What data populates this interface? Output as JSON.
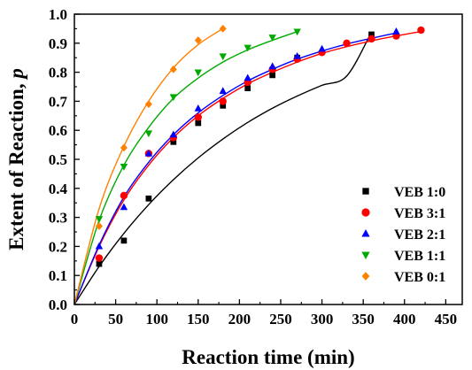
{
  "chart_data": {
    "type": "scatter",
    "xlabel": "Reaction time (min)",
    "ylabel": "Extent of Reaction, p",
    "ylabel_main": "Extent of Reaction, ",
    "ylabel_var": "p",
    "xlim": [
      0,
      470
    ],
    "ylim": [
      0,
      1.0
    ],
    "x_ticks": [
      0,
      50,
      100,
      150,
      200,
      250,
      300,
      350,
      400,
      450
    ],
    "x_tick_labels": [
      "0",
      "50",
      "100",
      "150",
      "200",
      "250",
      "300",
      "350",
      "400",
      "450"
    ],
    "y_ticks": [
      0,
      0.1,
      0.2,
      0.3,
      0.4,
      0.5,
      0.6,
      0.7,
      0.8,
      0.9,
      1.0
    ],
    "y_tick_labels": [
      "0.0",
      "0.1",
      "0.2",
      "0.3",
      "0.4",
      "0.5",
      "0.6",
      "0.7",
      "0.8",
      "0.9",
      "1.0"
    ],
    "grid": false,
    "legend_position": "bottom-right",
    "series": [
      {
        "name": "VEB 1:0",
        "marker": "square",
        "color": "#000000",
        "points": [
          [
            30,
            0.14
          ],
          [
            60,
            0.22
          ],
          [
            90,
            0.365
          ],
          [
            120,
            0.56
          ],
          [
            150,
            0.625
          ],
          [
            180,
            0.685
          ],
          [
            210,
            0.745
          ],
          [
            240,
            0.79
          ],
          [
            270,
            0.85
          ],
          [
            360,
            0.93
          ]
        ],
        "fit": [
          [
            0,
            0.0
          ],
          [
            30,
            0.131
          ],
          [
            60,
            0.245
          ],
          [
            90,
            0.344
          ],
          [
            120,
            0.43
          ],
          [
            150,
            0.505
          ],
          [
            180,
            0.57
          ],
          [
            210,
            0.627
          ],
          [
            240,
            0.676
          ],
          [
            270,
            0.718
          ],
          [
            300,
            0.755
          ],
          [
            330,
            0.787
          ],
          [
            360,
            0.938
          ]
        ]
      },
      {
        "name": "VEB 3:1",
        "marker": "circle",
        "color": "#ff0000",
        "points": [
          [
            30,
            0.16
          ],
          [
            60,
            0.375
          ],
          [
            90,
            0.52
          ],
          [
            120,
            0.575
          ],
          [
            150,
            0.645
          ],
          [
            180,
            0.7
          ],
          [
            210,
            0.765
          ],
          [
            240,
            0.81
          ],
          [
            270,
            0.845
          ],
          [
            300,
            0.868
          ],
          [
            330,
            0.9
          ],
          [
            360,
            0.915
          ],
          [
            390,
            0.925
          ],
          [
            420,
            0.945
          ]
        ],
        "fit": [
          [
            0,
            0.0
          ],
          [
            30,
            0.2
          ],
          [
            60,
            0.36
          ],
          [
            90,
            0.48
          ],
          [
            120,
            0.575
          ],
          [
            150,
            0.65
          ],
          [
            180,
            0.71
          ],
          [
            210,
            0.76
          ],
          [
            240,
            0.8
          ],
          [
            270,
            0.835
          ],
          [
            300,
            0.865
          ],
          [
            330,
            0.888
          ],
          [
            360,
            0.908
          ],
          [
            390,
            0.925
          ],
          [
            420,
            0.94
          ]
        ]
      },
      {
        "name": "VEB 2:1",
        "marker": "triangle-up",
        "color": "#0000ff",
        "points": [
          [
            30,
            0.2
          ],
          [
            60,
            0.335
          ],
          [
            90,
            0.52
          ],
          [
            120,
            0.585
          ],
          [
            150,
            0.675
          ],
          [
            180,
            0.735
          ],
          [
            210,
            0.78
          ],
          [
            240,
            0.82
          ],
          [
            270,
            0.855
          ],
          [
            300,
            0.88
          ],
          [
            390,
            0.94
          ]
        ],
        "fit": [
          [
            0,
            0.0
          ],
          [
            30,
            0.205
          ],
          [
            60,
            0.37
          ],
          [
            90,
            0.49
          ],
          [
            120,
            0.585
          ],
          [
            150,
            0.66
          ],
          [
            180,
            0.72
          ],
          [
            210,
            0.77
          ],
          [
            240,
            0.81
          ],
          [
            270,
            0.845
          ],
          [
            300,
            0.873
          ],
          [
            330,
            0.897
          ],
          [
            360,
            0.917
          ],
          [
            390,
            0.935
          ]
        ]
      },
      {
        "name": "VEB 1:1",
        "marker": "triangle-down",
        "color": "#00aa00",
        "points": [
          [
            30,
            0.295
          ],
          [
            60,
            0.475
          ],
          [
            90,
            0.59
          ],
          [
            120,
            0.715
          ],
          [
            150,
            0.8
          ],
          [
            180,
            0.855
          ],
          [
            210,
            0.885
          ],
          [
            240,
            0.92
          ],
          [
            270,
            0.94
          ]
        ],
        "fit": [
          [
            0,
            0.0
          ],
          [
            30,
            0.29
          ],
          [
            60,
            0.48
          ],
          [
            90,
            0.61
          ],
          [
            120,
            0.71
          ],
          [
            150,
            0.78
          ],
          [
            180,
            0.835
          ],
          [
            210,
            0.877
          ],
          [
            240,
            0.91
          ],
          [
            270,
            0.94
          ]
        ]
      },
      {
        "name": "VEB 0:1",
        "marker": "diamond",
        "color": "#ff8000",
        "points": [
          [
            30,
            0.27
          ],
          [
            60,
            0.54
          ],
          [
            90,
            0.69
          ],
          [
            120,
            0.81
          ],
          [
            150,
            0.91
          ],
          [
            180,
            0.95
          ]
        ],
        "fit": [
          [
            0,
            0.0
          ],
          [
            30,
            0.33
          ],
          [
            60,
            0.545
          ],
          [
            90,
            0.7
          ],
          [
            120,
            0.815
          ],
          [
            150,
            0.895
          ],
          [
            180,
            0.95
          ]
        ]
      }
    ]
  }
}
